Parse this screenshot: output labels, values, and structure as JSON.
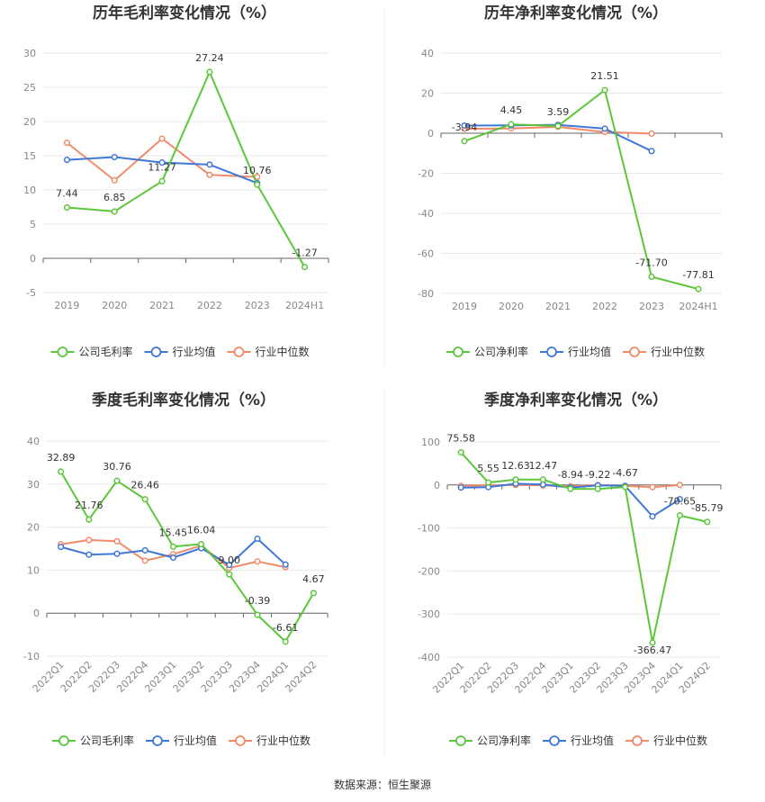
{
  "source": "数据来源：恒生聚源",
  "colors": {
    "company": "#5cc73a",
    "avg": "#3f78d6",
    "median": "#f28a6a",
    "grid": "#e8e8e8",
    "axis": "#666666"
  },
  "chart_data": [
    {
      "type": "line",
      "title": "历年毛利率变化情况（%）",
      "categories": [
        "2019",
        "2020",
        "2021",
        "2022",
        "2023",
        "2024H1"
      ],
      "ylim": [
        -5,
        30
      ],
      "yticks": [
        -5,
        0,
        5,
        10,
        15,
        20,
        25,
        30
      ],
      "grid": true,
      "legend_position": "bottom",
      "series": [
        {
          "name": "公司毛利率",
          "key": "company",
          "values": [
            7.44,
            6.85,
            11.27,
            27.24,
            10.76,
            -1.27
          ],
          "labels": [
            "7.44",
            "6.85",
            "11.27",
            "27.24",
            "10.76",
            "-1.27"
          ]
        },
        {
          "name": "行业均值",
          "key": "avg",
          "values": [
            14.4,
            14.8,
            14.0,
            13.7,
            11.0,
            null
          ]
        },
        {
          "name": "行业中位数",
          "key": "median",
          "values": [
            16.9,
            11.4,
            17.5,
            12.2,
            11.9,
            null
          ]
        }
      ]
    },
    {
      "type": "line",
      "title": "历年净利率变化情况（%）",
      "categories": [
        "2019",
        "2020",
        "2021",
        "2022",
        "2023",
        "2024H1"
      ],
      "ylim": [
        -80,
        40
      ],
      "yticks": [
        -80,
        -60,
        -40,
        -20,
        0,
        20,
        40
      ],
      "grid": true,
      "legend_position": "bottom",
      "series": [
        {
          "name": "公司净利率",
          "key": "company",
          "values": [
            -3.94,
            4.45,
            3.59,
            21.51,
            -71.7,
            -77.81
          ],
          "labels": [
            "-3.94",
            "4.45",
            "3.59",
            "21.51",
            "-71.70",
            "-77.81"
          ]
        },
        {
          "name": "行业均值",
          "key": "avg",
          "values": [
            3.8,
            3.9,
            4.2,
            2.3,
            -8.9,
            null
          ]
        },
        {
          "name": "行业中位数",
          "key": "median",
          "values": [
            2.2,
            2.4,
            3.2,
            0.6,
            -0.2,
            null
          ]
        }
      ]
    },
    {
      "type": "line",
      "title": "季度毛利率变化情况（%）",
      "categories": [
        "2022Q1",
        "2022Q2",
        "2022Q3",
        "2022Q4",
        "2023Q1",
        "2023Q2",
        "2023Q3",
        "2023Q4",
        "2024Q1",
        "2024Q2"
      ],
      "ylim": [
        -10,
        40
      ],
      "yticks": [
        -10,
        0,
        10,
        20,
        30,
        40
      ],
      "grid": true,
      "legend_position": "bottom",
      "series": [
        {
          "name": "公司毛利率",
          "key": "company",
          "values": [
            32.89,
            21.76,
            30.76,
            26.46,
            15.45,
            16.04,
            9.0,
            -0.39,
            -6.61,
            4.67
          ],
          "labels": [
            "32.89",
            "21.76",
            "30.76",
            "26.46",
            "15.45",
            "16.04",
            "9.00",
            "-0.39",
            "-6.61",
            "4.67"
          ]
        },
        {
          "name": "行业均值",
          "key": "avg",
          "values": [
            15.4,
            13.6,
            13.8,
            14.6,
            12.9,
            15.1,
            11.2,
            17.3,
            11.3,
            null
          ]
        },
        {
          "name": "行业中位数",
          "key": "median",
          "values": [
            16.0,
            17.0,
            16.7,
            12.2,
            13.7,
            15.7,
            10.5,
            12.0,
            10.7,
            null
          ]
        }
      ]
    },
    {
      "type": "line",
      "title": "季度净利率变化情况（%）",
      "categories": [
        "2022Q1",
        "2022Q2",
        "2022Q3",
        "2022Q4",
        "2023Q1",
        "2023Q2",
        "2023Q3",
        "2023Q4",
        "2024Q1",
        "2024Q2"
      ],
      "ylim": [
        -400,
        100
      ],
      "yticks": [
        -400,
        -300,
        -200,
        -100,
        0,
        100
      ],
      "grid": true,
      "legend_position": "bottom",
      "series": [
        {
          "name": "公司净利率",
          "key": "company",
          "values": [
            75.58,
            5.55,
            12.63,
            12.47,
            -8.94,
            -9.22,
            -4.67,
            -366.47,
            -70.65,
            -85.79
          ],
          "labels": [
            "75.58",
            "5.55",
            "12.63",
            "12.47",
            "-8.94",
            "-9.22",
            "-4.67",
            "-366.47",
            "-70.65",
            "-85.79"
          ]
        },
        {
          "name": "行业均值",
          "key": "avg",
          "values": [
            -6,
            -5,
            3,
            1,
            -6,
            -1,
            -2,
            -73,
            -33,
            null
          ]
        },
        {
          "name": "行业中位数",
          "key": "median",
          "values": [
            -2,
            -1,
            0,
            -1,
            -3,
            0,
            -2,
            -5,
            0,
            null
          ]
        }
      ]
    }
  ]
}
